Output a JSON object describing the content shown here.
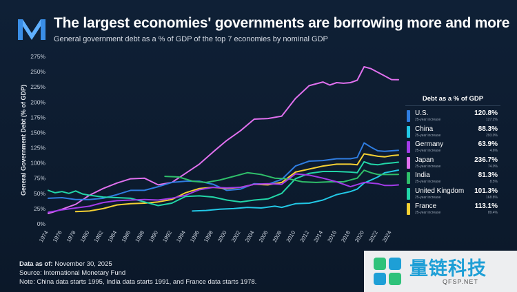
{
  "header": {
    "title": "The largest economies' governments are borrowing more and more",
    "subtitle": "General government debt as a % of GDP of the top 7 economies by nominal GDP"
  },
  "legend": {
    "title": "Debt as a % of GDP",
    "sub_label": "25-year increase",
    "items": [
      {
        "name": "U.S.",
        "value": "120.8%",
        "increase": "127.2%",
        "color": "#2f7de1"
      },
      {
        "name": "China",
        "value": "88.3%",
        "increase": "293.0%",
        "color": "#22c8e6"
      },
      {
        "name": "Germany",
        "value": "63.9%",
        "increase": "4.6%",
        "color": "#a23be8"
      },
      {
        "name": "Japan",
        "value": "236.7%",
        "increase": "74.0%",
        "color": "#e070ee"
      },
      {
        "name": "India",
        "value": "81.3%",
        "increase": "8.5%",
        "color": "#2fbf6a"
      },
      {
        "name": "United Kingdom",
        "value": "101.3%",
        "increase": "168.8%",
        "color": "#22d6a8"
      },
      {
        "name": "France",
        "value": "113.1%",
        "increase": "89.4%",
        "color": "#f5d033"
      }
    ]
  },
  "footer": {
    "date_label": "Data as of:",
    "date_value": "November 30, 2025",
    "source": "Source: International Monetary Fund",
    "note": "Note: China data starts 1995, India data starts 1991, and France data starts 1978."
  },
  "watermark": {
    "text": "量链科技",
    "url": "QFSP.NET"
  },
  "chart_data": {
    "type": "line",
    "title": "The largest economies' governments are borrowing more and more",
    "subtitle": "General government debt as a % of GDP of the top 7 economies by nominal GDP",
    "xlabel": "",
    "ylabel": "General Government Debt (% of GDP)",
    "xlim": [
      1974,
      2025
    ],
    "ylim": [
      0,
      275
    ],
    "yticks": [
      0,
      25,
      50,
      75,
      100,
      125,
      150,
      175,
      200,
      225,
      250,
      275
    ],
    "ytick_labels": [
      "0%",
      "25%",
      "50%",
      "75%",
      "100%",
      "125%",
      "150%",
      "175%",
      "200%",
      "225%",
      "250%",
      "275%"
    ],
    "xticks": [
      1974,
      1976,
      1978,
      1980,
      1982,
      1984,
      1986,
      1988,
      1990,
      1992,
      1994,
      1996,
      1998,
      2000,
      2002,
      2004,
      2006,
      2008,
      2010,
      2012,
      2014,
      2016,
      2018,
      2020,
      2022,
      2024
    ],
    "grid": false,
    "legend_position": "right",
    "series": [
      {
        "name": "Japan",
        "color": "#e070ee",
        "x": [
          1974,
          1976,
          1978,
          1980,
          1982,
          1984,
          1986,
          1988,
          1990,
          1992,
          1994,
          1996,
          1998,
          2000,
          2002,
          2004,
          2006,
          2008,
          2010,
          2012,
          2014,
          2015,
          2016,
          2017,
          2018,
          2019,
          2020,
          2021,
          2022,
          2023,
          2024,
          2025
        ],
        "y": [
          17,
          24,
          32,
          47,
          58,
          67,
          74,
          75,
          64,
          68,
          83,
          98,
          118,
          137,
          153,
          172,
          173,
          177,
          206,
          227,
          233,
          228,
          232,
          231,
          232,
          236,
          258,
          255,
          249,
          243,
          237,
          236.7
        ]
      },
      {
        "name": "U.S.",
        "color": "#2f7de1",
        "x": [
          1974,
          1976,
          1978,
          1980,
          1982,
          1984,
          1986,
          1988,
          1990,
          1992,
          1994,
          1996,
          1998,
          2000,
          2002,
          2004,
          2006,
          2008,
          2010,
          2012,
          2014,
          2016,
          2018,
          2019,
          2020,
          2021,
          2022,
          2023,
          2024,
          2025
        ],
        "y": [
          42,
          43,
          40,
          40,
          42,
          48,
          55,
          55,
          61,
          68,
          70,
          70,
          65,
          55,
          57,
          66,
          65,
          73,
          95,
          103,
          104,
          107,
          107,
          109,
          133,
          126,
          120,
          119,
          120,
          120.8
        ]
      },
      {
        "name": "France",
        "color": "#f5d033",
        "x": [
          1978,
          1980,
          1982,
          1984,
          1986,
          1988,
          1990,
          1992,
          1994,
          1996,
          1998,
          2000,
          2002,
          2004,
          2006,
          2008,
          2010,
          2012,
          2014,
          2016,
          2018,
          2019,
          2020,
          2021,
          2022,
          2023,
          2024,
          2025
        ],
        "y": [
          20,
          21,
          25,
          31,
          33,
          34,
          36,
          40,
          51,
          58,
          60,
          58,
          60,
          65,
          64,
          68,
          85,
          90,
          95,
          98,
          98,
          97,
          115,
          113,
          111,
          110,
          112,
          113.1
        ]
      },
      {
        "name": "United Kingdom",
        "color": "#22d6a8",
        "x": [
          1974,
          1975,
          1976,
          1977,
          1978,
          1979,
          1980,
          1982,
          1984,
          1986,
          1988,
          1990,
          1992,
          1994,
          1996,
          1998,
          2000,
          2002,
          2004,
          2006,
          2008,
          2010,
          2012,
          2014,
          2016,
          2018,
          2019,
          2020,
          2021,
          2022,
          2023,
          2024,
          2025
        ],
        "y": [
          55,
          51,
          53,
          50,
          54,
          49,
          47,
          44,
          43,
          42,
          36,
          30,
          34,
          45,
          46,
          44,
          39,
          36,
          39,
          41,
          50,
          74,
          83,
          86,
          86,
          85,
          84,
          102,
          98,
          97,
          99,
          100,
          101.3
        ]
      },
      {
        "name": "China",
        "color": "#22c8e6",
        "x": [
          1995,
          1997,
          1999,
          2001,
          2003,
          2005,
          2007,
          2008,
          2010,
          2012,
          2014,
          2016,
          2018,
          2019,
          2020,
          2021,
          2022,
          2023,
          2024,
          2025
        ],
        "y": [
          21,
          22,
          24,
          25,
          27,
          26,
          29,
          27,
          33,
          34,
          39,
          48,
          53,
          57,
          67,
          72,
          77,
          84,
          86,
          88.3
        ]
      },
      {
        "name": "India",
        "color": "#2fbf6a",
        "x": [
          1991,
          1993,
          1995,
          1997,
          1999,
          2001,
          2003,
          2005,
          2007,
          2009,
          2011,
          2013,
          2015,
          2017,
          2019,
          2020,
          2021,
          2022,
          2023,
          2024,
          2025
        ],
        "y": [
          78,
          77,
          70,
          68,
          72,
          78,
          84,
          81,
          75,
          74,
          69,
          68,
          69,
          69,
          75,
          88,
          84,
          81,
          81,
          81,
          81.3
        ]
      },
      {
        "name": "Germany",
        "color": "#a23be8",
        "x": [
          1974,
          1976,
          1978,
          1980,
          1982,
          1984,
          1986,
          1988,
          1990,
          1992,
          1994,
          1996,
          1998,
          2000,
          2002,
          2004,
          2006,
          2008,
          2010,
          2012,
          2014,
          2016,
          2018,
          2020,
          2022,
          2023,
          2024,
          2025
        ],
        "y": [
          19,
          23,
          26,
          29,
          35,
          38,
          39,
          40,
          39,
          42,
          47,
          56,
          60,
          59,
          60,
          65,
          66,
          65,
          82,
          80,
          75,
          69,
          61,
          68,
          66,
          63,
          63,
          63.9
        ]
      }
    ]
  }
}
